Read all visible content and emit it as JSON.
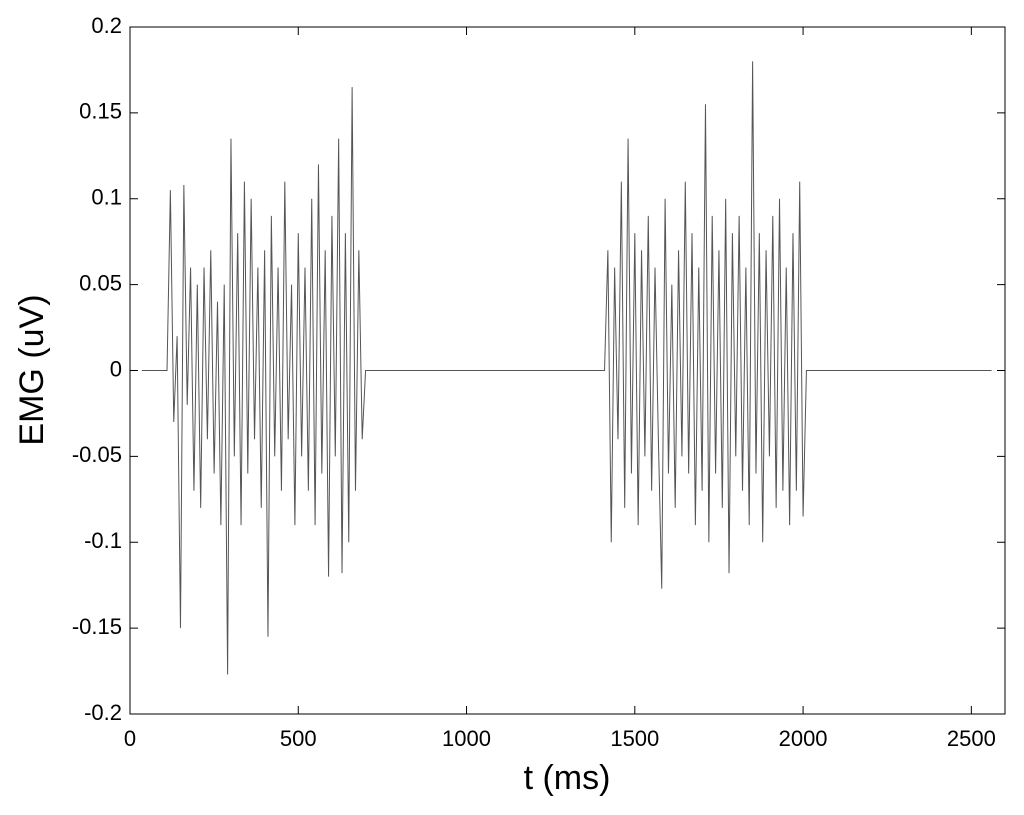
{
  "chart_data": {
    "type": "line",
    "xlabel": "t (ms)",
    "ylabel": "EMG (uV)",
    "x": [
      35,
      110,
      120,
      130,
      140,
      150,
      160,
      170,
      180,
      190,
      200,
      210,
      220,
      230,
      240,
      250,
      260,
      270,
      280,
      290,
      300,
      310,
      320,
      330,
      340,
      350,
      360,
      370,
      380,
      390,
      400,
      410,
      420,
      430,
      440,
      450,
      460,
      470,
      480,
      490,
      500,
      510,
      520,
      530,
      540,
      550,
      560,
      570,
      580,
      590,
      600,
      610,
      620,
      630,
      640,
      650,
      660,
      670,
      680,
      690,
      700,
      710,
      1410,
      1420,
      1430,
      1440,
      1450,
      1460,
      1470,
      1480,
      1490,
      1500,
      1510,
      1520,
      1530,
      1540,
      1550,
      1560,
      1570,
      1580,
      1590,
      1600,
      1610,
      1620,
      1630,
      1640,
      1650,
      1660,
      1670,
      1680,
      1690,
      1700,
      1710,
      1720,
      1730,
      1740,
      1750,
      1760,
      1770,
      1780,
      1790,
      1800,
      1810,
      1820,
      1830,
      1840,
      1850,
      1860,
      1870,
      1880,
      1890,
      1900,
      1910,
      1920,
      1930,
      1940,
      1950,
      1960,
      1970,
      1980,
      1990,
      2000,
      2010,
      2560
    ],
    "values": [
      0,
      0,
      0.105,
      -0.03,
      0.02,
      -0.15,
      0.108,
      -0.02,
      0.06,
      -0.07,
      0.05,
      -0.08,
      0.06,
      -0.04,
      0.07,
      -0.06,
      0.04,
      -0.09,
      0.05,
      -0.177,
      0.135,
      -0.05,
      0.08,
      -0.09,
      0.11,
      -0.06,
      0.1,
      -0.04,
      0.06,
      -0.08,
      0.07,
      -0.155,
      0.09,
      -0.05,
      0.06,
      -0.07,
      0.11,
      -0.04,
      0.05,
      -0.09,
      0.08,
      -0.05,
      0.06,
      -0.07,
      0.1,
      -0.09,
      0.12,
      -0.06,
      0.07,
      -0.12,
      0.09,
      -0.05,
      0.135,
      -0.118,
      0.08,
      -0.1,
      0.165,
      -0.07,
      0.07,
      -0.04,
      0,
      0,
      0,
      0.07,
      -0.1,
      0.06,
      -0.04,
      0.11,
      -0.08,
      0.135,
      -0.06,
      0.08,
      -0.09,
      0.07,
      -0.05,
      0.09,
      -0.07,
      0.06,
      -0.04,
      -0.127,
      0.1,
      -0.06,
      0.05,
      -0.08,
      0.07,
      -0.05,
      0.11,
      -0.06,
      0.08,
      -0.09,
      0.06,
      -0.07,
      0.155,
      -0.1,
      0.09,
      -0.06,
      0.07,
      -0.08,
      0.1,
      -0.118,
      0.08,
      -0.05,
      0.09,
      -0.07,
      0.06,
      -0.09,
      0.18,
      -0.06,
      0.08,
      -0.1,
      0.07,
      -0.05,
      0.09,
      -0.08,
      0.1,
      -0.07,
      0.06,
      -0.09,
      0.08,
      -0.07,
      0.11,
      -0.085,
      0,
      0
    ],
    "color": "#555555",
    "xlim": [
      0,
      2600
    ],
    "xticks": [
      0,
      500,
      1000,
      1500,
      2000,
      2500
    ],
    "ylim": [
      -0.2,
      0.2
    ],
    "yticks": [
      -0.2,
      -0.15,
      -0.1,
      -0.05,
      0,
      0.05,
      0.1,
      0.15,
      0.2
    ]
  }
}
